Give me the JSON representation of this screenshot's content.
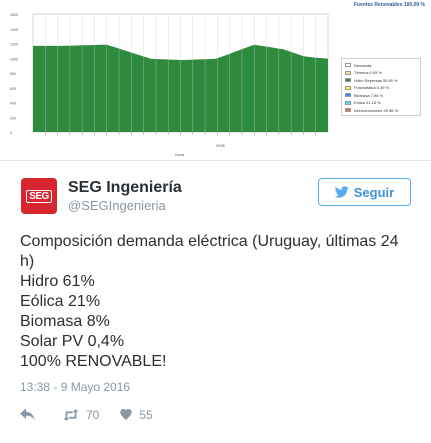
{
  "chart_image": {
    "top_label": "Fuentes Renovables 100,00 %",
    "x_axis_label": "Horas",
    "x_axis_sublabel": "09/05",
    "y_tick_labels": [
      "1600",
      "1400",
      "1200",
      "1000",
      "800",
      "600",
      "400",
      "200",
      "0"
    ],
    "legend": [
      {
        "label": "Demanda",
        "color": "#ffffff"
      },
      {
        "label": "Térmica 0.05 %",
        "color": "#f0e68c"
      },
      {
        "label": "Hidro Represas 30.69 %",
        "color": "#2e8b3e"
      },
      {
        "label": "Fotovoltaica 0.39 %",
        "color": "#fff24a"
      },
      {
        "label": "Biomasa 7.96 %",
        "color": "#2e8bff"
      },
      {
        "label": "Eólica 21.15 %",
        "color": "#49e0ee"
      },
      {
        "label": "Interconexiones 39.56 %",
        "color": "#e36a4f"
      }
    ],
    "colors": {
      "hydro": "#2e8b3e",
      "biomass": "#2e75d6",
      "wind": "#49e0ee",
      "interconnection": "#e36a4f",
      "demand_line": "#ffffff",
      "grid": "#c8c8c8"
    }
  },
  "tweet": {
    "display_name": "SEG Ingeniería",
    "handle": "@SEGIngenieria",
    "avatar_text": "SEG",
    "follow_label": "Seguir",
    "text_lines": [
      "Composición demanda eléctrica (Uruguay, últimas 24",
      "h)",
      "Hidro 61%",
      "Eólica 21%",
      "Biomasa 8%",
      "Solar PV 0,4%",
      "100% RENOVABLE!"
    ],
    "timestamp": "13:38 - 9 Mayo 2016",
    "retweet_count": "70",
    "like_count": "55",
    "icons": {
      "reply": "reply-icon",
      "retweet": "retweet-icon",
      "like": "heart-icon",
      "follow": "twitter-bird-icon"
    }
  }
}
